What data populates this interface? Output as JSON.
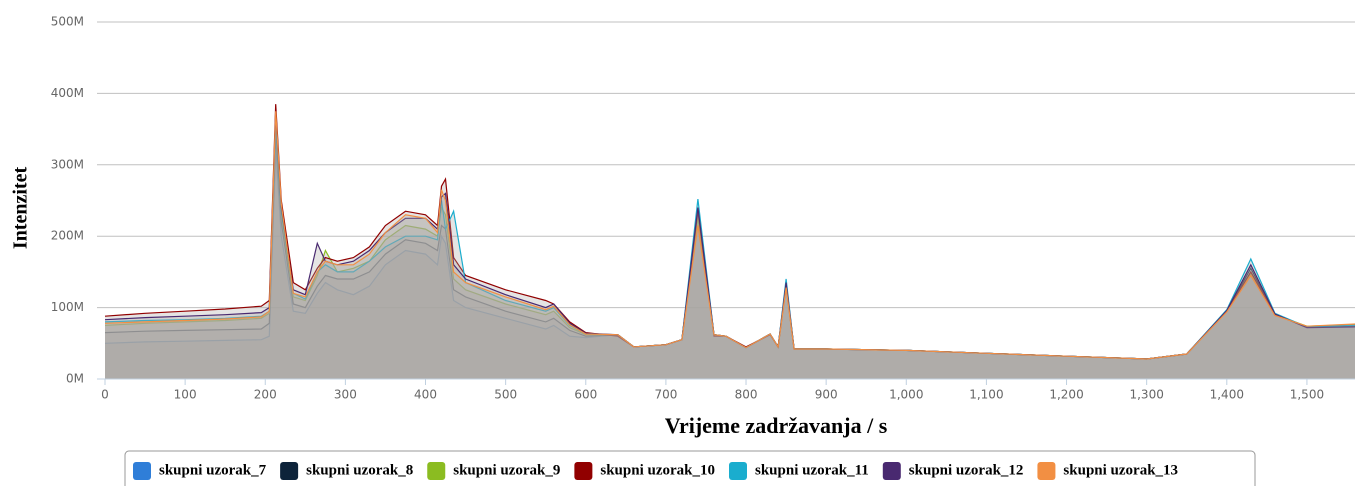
{
  "chart_data": {
    "type": "area",
    "xlabel": "Vrijeme zadržavanja / s",
    "ylabel": "Intenzitet",
    "grid": true,
    "legend": "bottom",
    "xlim": [
      0,
      1560
    ],
    "ylim": [
      0,
      500000000.0
    ],
    "xticks": [
      0,
      100,
      200,
      300,
      400,
      500,
      600,
      700,
      800,
      900,
      {
        "value": 1000,
        "label": "1,000"
      },
      {
        "value": 1100,
        "label": "1,100"
      },
      {
        "value": 1200,
        "label": "1,200"
      },
      {
        "value": 1300,
        "label": "1,300"
      },
      {
        "value": 1400,
        "label": "1,400"
      },
      {
        "value": 1500,
        "label": "1,500"
      }
    ],
    "yticks": [
      {
        "value": 0,
        "label": "0M"
      },
      {
        "value": 100000000.0,
        "label": "100M"
      },
      {
        "value": 200000000.0,
        "label": "200M"
      },
      {
        "value": 300000000.0,
        "label": "300M"
      },
      {
        "value": 400000000.0,
        "label": "400M"
      },
      {
        "value": 500000000.0,
        "label": "500M"
      }
    ],
    "x": [
      0,
      50,
      100,
      150,
      195,
      205,
      213,
      220,
      235,
      250,
      265,
      275,
      290,
      310,
      330,
      350,
      375,
      400,
      415,
      420,
      425,
      435,
      450,
      500,
      550,
      560,
      580,
      600,
      640,
      660,
      700,
      720,
      740,
      760,
      775,
      800,
      830,
      840,
      850,
      860,
      900,
      1000,
      1100,
      1200,
      1300,
      1350,
      1400,
      1430,
      1460,
      1500,
      1560
    ],
    "series": [
      {
        "name": "skupni uzorak_7",
        "color": "#2f7ed8",
        "values": [
          50000000.0,
          52000000.0,
          53000000.0,
          54000000.0,
          55000000.0,
          60000000.0,
          320000000.0,
          200000000.0,
          95000000.0,
          92000000.0,
          120000000.0,
          135000000.0,
          125000000.0,
          118000000.0,
          130000000.0,
          160000000.0,
          180000000.0,
          175000000.0,
          160000000.0,
          200000000.0,
          190000000.0,
          110000000.0,
          100000000.0,
          85000000.0,
          70000000.0,
          75000000.0,
          60000000.0,
          58000000.0,
          62000000.0,
          45000000.0,
          48000000.0,
          55000000.0,
          230000000.0,
          62000000.0,
          60000000.0,
          44000000.0,
          63000000.0,
          45000000.0,
          130000000.0,
          42000000.0,
          42000000.0,
          40000000.0,
          36000000.0,
          32000000.0,
          28000000.0,
          35000000.0,
          95000000.0,
          150000000.0,
          90000000.0,
          73000000.0,
          74000000.0
        ]
      },
      {
        "name": "skupni uzorak_8",
        "color": "#0d233a",
        "values": [
          65000000.0,
          67000000.0,
          68000000.0,
          69000000.0,
          70000000.0,
          78000000.0,
          340000000.0,
          220000000.0,
          105000000.0,
          100000000.0,
          130000000.0,
          145000000.0,
          140000000.0,
          140000000.0,
          150000000.0,
          175000000.0,
          195000000.0,
          190000000.0,
          180000000.0,
          215000000.0,
          210000000.0,
          125000000.0,
          115000000.0,
          95000000.0,
          80000000.0,
          85000000.0,
          68000000.0,
          60000000.0,
          62000000.0,
          45000000.0,
          48000000.0,
          55000000.0,
          238000000.0,
          62000000.0,
          60000000.0,
          44000000.0,
          63000000.0,
          45000000.0,
          135000000.0,
          42000000.0,
          42000000.0,
          40000000.0,
          36000000.0,
          32000000.0,
          28000000.0,
          35000000.0,
          95000000.0,
          155000000.0,
          90000000.0,
          73000000.0,
          74000000.0
        ]
      },
      {
        "name": "skupni uzorak_9",
        "color": "#8bbc21",
        "values": [
          75000000.0,
          78000000.0,
          80000000.0,
          82000000.0,
          85000000.0,
          92000000.0,
          355000000.0,
          230000000.0,
          115000000.0,
          110000000.0,
          145000000.0,
          180000000.0,
          150000000.0,
          155000000.0,
          165000000.0,
          195000000.0,
          215000000.0,
          210000000.0,
          200000000.0,
          240000000.0,
          230000000.0,
          140000000.0,
          125000000.0,
          105000000.0,
          90000000.0,
          95000000.0,
          72000000.0,
          62000000.0,
          62000000.0,
          45000000.0,
          48000000.0,
          55000000.0,
          225000000.0,
          62000000.0,
          60000000.0,
          44000000.0,
          63000000.0,
          45000000.0,
          128000000.0,
          42000000.0,
          42000000.0,
          40000000.0,
          36000000.0,
          32000000.0,
          28000000.0,
          35000000.0,
          95000000.0,
          148000000.0,
          90000000.0,
          74000000.0,
          76000000.0
        ]
      },
      {
        "name": "skupni uzorak_10",
        "color": "#910000",
        "values": [
          88000000.0,
          92000000.0,
          95000000.0,
          98000000.0,
          102000000.0,
          110000000.0,
          385000000.0,
          250000000.0,
          135000000.0,
          125000000.0,
          155000000.0,
          170000000.0,
          165000000.0,
          170000000.0,
          185000000.0,
          215000000.0,
          235000000.0,
          230000000.0,
          215000000.0,
          270000000.0,
          280000000.0,
          170000000.0,
          145000000.0,
          125000000.0,
          110000000.0,
          105000000.0,
          80000000.0,
          65000000.0,
          60000000.0,
          45000000.0,
          48000000.0,
          55000000.0,
          235000000.0,
          60000000.0,
          60000000.0,
          45000000.0,
          62000000.0,
          45000000.0,
          130000000.0,
          42000000.0,
          42000000.0,
          40000000.0,
          36000000.0,
          32000000.0,
          28000000.0,
          35000000.0,
          95000000.0,
          150000000.0,
          90000000.0,
          73000000.0,
          75000000.0
        ]
      },
      {
        "name": "skupni uzorak_11",
        "color": "#1aadce",
        "values": [
          80000000.0,
          82000000.0,
          83000000.0,
          85000000.0,
          88000000.0,
          95000000.0,
          360000000.0,
          235000000.0,
          120000000.0,
          112000000.0,
          150000000.0,
          160000000.0,
          150000000.0,
          150000000.0,
          165000000.0,
          185000000.0,
          200000000.0,
          200000000.0,
          195000000.0,
          250000000.0,
          210000000.0,
          235000000.0,
          135000000.0,
          110000000.0,
          95000000.0,
          100000000.0,
          75000000.0,
          63000000.0,
          62000000.0,
          45000000.0,
          48000000.0,
          55000000.0,
          252000000.0,
          62000000.0,
          60000000.0,
          44000000.0,
          63000000.0,
          45000000.0,
          140000000.0,
          42000000.0,
          42000000.0,
          40000000.0,
          36000000.0,
          32000000.0,
          28000000.0,
          35000000.0,
          97000000.0,
          168000000.0,
          92000000.0,
          73000000.0,
          75000000.0
        ]
      },
      {
        "name": "skupni uzorak_12",
        "color": "#492970",
        "values": [
          83000000.0,
          86000000.0,
          88000000.0,
          90000000.0,
          93000000.0,
          100000000.0,
          370000000.0,
          240000000.0,
          125000000.0,
          118000000.0,
          190000000.0,
          165000000.0,
          160000000.0,
          165000000.0,
          180000000.0,
          205000000.0,
          225000000.0,
          225000000.0,
          210000000.0,
          255000000.0,
          260000000.0,
          160000000.0,
          140000000.0,
          118000000.0,
          100000000.0,
          105000000.0,
          78000000.0,
          64000000.0,
          62000000.0,
          45000000.0,
          48000000.0,
          55000000.0,
          240000000.0,
          62000000.0,
          60000000.0,
          44000000.0,
          63000000.0,
          45000000.0,
          135000000.0,
          42000000.0,
          42000000.0,
          40000000.0,
          36000000.0,
          32000000.0,
          28000000.0,
          35000000.0,
          96000000.0,
          160000000.0,
          91000000.0,
          72000000.0,
          73000000.0
        ]
      },
      {
        "name": "skupni uzorak_13",
        "color": "#f28f43",
        "values": [
          78000000.0,
          80000000.0,
          82000000.0,
          84000000.0,
          87000000.0,
          95000000.0,
          375000000.0,
          245000000.0,
          120000000.0,
          115000000.0,
          150000000.0,
          165000000.0,
          160000000.0,
          160000000.0,
          175000000.0,
          205000000.0,
          230000000.0,
          225000000.0,
          205000000.0,
          265000000.0,
          250000000.0,
          150000000.0,
          135000000.0,
          115000000.0,
          97000000.0,
          102000000.0,
          76000000.0,
          63000000.0,
          62000000.0,
          45000000.0,
          48000000.0,
          55000000.0,
          215000000.0,
          62000000.0,
          60000000.0,
          44000000.0,
          63000000.0,
          45000000.0,
          128000000.0,
          42000000.0,
          42000000.0,
          40000000.0,
          36000000.0,
          32000000.0,
          28000000.0,
          35000000.0,
          94000000.0,
          145000000.0,
          89000000.0,
          74000000.0,
          77000000.0
        ]
      }
    ]
  }
}
